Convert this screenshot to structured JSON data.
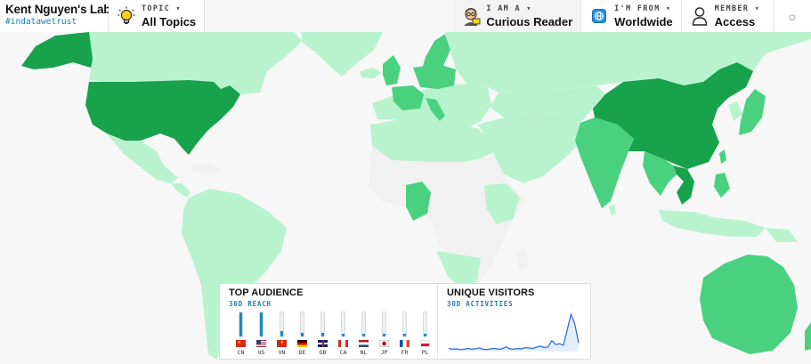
{
  "brand": {
    "title": "Kent Nguyen's Lab",
    "tag": "#indatawetrust"
  },
  "topic": {
    "label": "TOPIC ▾",
    "value": "All Topics",
    "icon": "lightbulb-icon"
  },
  "persona": {
    "label": "I AM A ▾",
    "value": "Curious Reader",
    "icon": "reader-avatar-icon"
  },
  "region": {
    "label": "I'M FROM ▾",
    "value": "Worldwide",
    "icon": "globe-badge-icon"
  },
  "member": {
    "label": "MEMBER ▾",
    "value": "Access",
    "icon": "user-icon"
  },
  "settings": {
    "icon": "sun-icon",
    "glyph": "☼"
  },
  "colors": {
    "dark": "#17a24b",
    "mid": "#49d17f",
    "light": "#b8f3ce",
    "none": "#f1f1f1",
    "accent": "#1a7fb8"
  },
  "audience": {
    "title": "TOP AUDIENCE",
    "subtitle": "30D REACH",
    "countries": [
      {
        "code": "CN",
        "reach": 1.0
      },
      {
        "code": "US",
        "reach": 1.0
      },
      {
        "code": "VN",
        "reach": 0.22
      },
      {
        "code": "DE",
        "reach": 0.14
      },
      {
        "code": "GB",
        "reach": 0.14
      },
      {
        "code": "CA",
        "reach": 0.12
      },
      {
        "code": "NL",
        "reach": 0.12
      },
      {
        "code": "JP",
        "reach": 0.12
      },
      {
        "code": "FR",
        "reach": 0.12
      },
      {
        "code": "PL",
        "reach": 0.12
      }
    ]
  },
  "visitors": {
    "title": "UNIQUE VISITORS",
    "subtitle": "30D ACTIVITIES",
    "series": [
      0.08,
      0.06,
      0.07,
      0.05,
      0.06,
      0.08,
      0.06,
      0.07,
      0.09,
      0.06,
      0.05,
      0.07,
      0.08,
      0.06,
      0.07,
      0.12,
      0.07,
      0.06,
      0.08,
      0.07,
      0.1,
      0.09,
      0.08,
      0.11,
      0.14,
      0.1,
      0.12,
      0.28,
      0.18,
      0.2,
      0.16,
      0.55,
      0.95,
      0.7,
      0.22
    ]
  }
}
